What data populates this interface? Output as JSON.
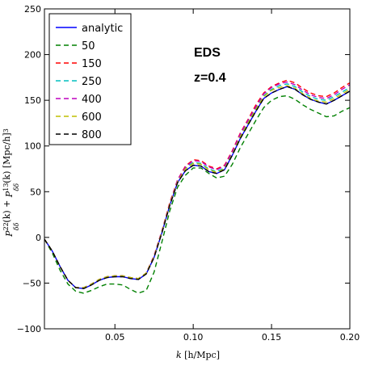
{
  "chart_data": {
    "type": "line",
    "xlabel": "k [h/Mpc]",
    "ylabel": "P_{δδ}^{22}(k) + P_{δδ}^{13}(k) [Mpc/h]^3",
    "xlim": [
      0.005,
      0.2
    ],
    "ylim": [
      -100,
      250
    ],
    "xticks": [
      0.05,
      0.1,
      0.15,
      0.2
    ],
    "xtick_labels": [
      "0.05",
      "0.10",
      "0.15",
      "0.20"
    ],
    "yticks": [
      -100,
      -50,
      0,
      50,
      100,
      150,
      200,
      250
    ],
    "ytick_labels": [
      "−100",
      "−50",
      "0",
      "50",
      "100",
      "150",
      "200",
      "250"
    ],
    "grid": false,
    "legend_position": "top-left",
    "annotations": [
      "EDS",
      "z=0.4"
    ],
    "x": [
      0.005,
      0.01,
      0.015,
      0.02,
      0.025,
      0.03,
      0.035,
      0.04,
      0.045,
      0.05,
      0.055,
      0.06,
      0.065,
      0.07,
      0.075,
      0.08,
      0.085,
      0.09,
      0.095,
      0.1,
      0.105,
      0.11,
      0.115,
      0.12,
      0.125,
      0.13,
      0.135,
      0.14,
      0.145,
      0.15,
      0.155,
      0.16,
      0.165,
      0.17,
      0.175,
      0.18,
      0.185,
      0.19,
      0.195,
      0.2
    ],
    "series": [
      {
        "name": "analytic",
        "color": "#0000ff",
        "dash": "solid",
        "values": [
          -2,
          -15,
          -32,
          -47,
          -55,
          -56,
          -52,
          -47,
          -44,
          -43,
          -43,
          -45,
          -46,
          -40,
          -22,
          5,
          35,
          60,
          73,
          79,
          78,
          72,
          70,
          74,
          90,
          108,
          123,
          138,
          152,
          158,
          162,
          165,
          162,
          156,
          151,
          148,
          146,
          150,
          155,
          160
        ]
      },
      {
        "name": "50",
        "color": "#008000",
        "dash": "dashed",
        "values": [
          -2,
          -17,
          -36,
          -51,
          -59,
          -61,
          -58,
          -54,
          -51,
          -51,
          -52,
          -57,
          -61,
          -58,
          -38,
          -5,
          29,
          55,
          68,
          76,
          76,
          70,
          65,
          67,
          80,
          98,
          113,
          128,
          142,
          150,
          154,
          155,
          151,
          145,
          140,
          136,
          132,
          133,
          138,
          142
        ]
      },
      {
        "name": "150",
        "color": "#ff0000",
        "dash": "dashed",
        "values": [
          -2,
          -15,
          -32,
          -47,
          -55,
          -55,
          -51,
          -46,
          -43,
          -42,
          -42,
          -44,
          -45,
          -39,
          -20,
          7,
          38,
          63,
          78,
          85,
          84,
          78,
          75,
          79,
          95,
          114,
          129,
          145,
          158,
          165,
          169,
          172,
          169,
          163,
          158,
          155,
          154,
          158,
          164,
          169
        ]
      },
      {
        "name": "250",
        "color": "#00bfbf",
        "dash": "dashed",
        "values": [
          -2,
          -15,
          -32,
          -47,
          -55,
          -55,
          -51,
          -46,
          -43,
          -42,
          -42,
          -44,
          -45,
          -39,
          -21,
          6,
          36,
          62,
          76,
          82,
          81,
          75,
          72,
          76,
          92,
          111,
          126,
          141,
          155,
          162,
          166,
          168,
          165,
          159,
          154,
          151,
          150,
          154,
          159,
          164
        ]
      },
      {
        "name": "400",
        "color": "#bf00bf",
        "dash": "dashed",
        "values": [
          -2,
          -15,
          -32,
          -47,
          -55,
          -55,
          -51,
          -46,
          -43,
          -42,
          -42,
          -44,
          -45,
          -39,
          -20,
          7,
          37,
          63,
          77,
          84,
          83,
          77,
          74,
          78,
          94,
          113,
          128,
          143,
          157,
          164,
          168,
          170,
          167,
          161,
          156,
          153,
          152,
          156,
          162,
          167
        ]
      },
      {
        "name": "600",
        "color": "#bfbf00",
        "dash": "dashed",
        "values": [
          -2,
          -15,
          -32,
          -47,
          -55,
          -55,
          -51,
          -46,
          -43,
          -42,
          -42,
          -44,
          -45,
          -39,
          -21,
          6,
          36,
          61,
          75,
          81,
          80,
          74,
          71,
          75,
          91,
          110,
          125,
          140,
          154,
          161,
          164,
          166,
          163,
          157,
          152,
          149,
          148,
          152,
          157,
          162
        ]
      },
      {
        "name": "800",
        "color": "#000000",
        "dash": "dashed",
        "values": [
          -2,
          -15,
          -32,
          -47,
          -55,
          -56,
          -52,
          -47,
          -44,
          -43,
          -43,
          -45,
          -46,
          -40,
          -22,
          5,
          35,
          60,
          73,
          79,
          78,
          72,
          70,
          74,
          90,
          108,
          123,
          138,
          152,
          158,
          162,
          165,
          162,
          156,
          151,
          148,
          146,
          150,
          155,
          160
        ]
      }
    ]
  }
}
